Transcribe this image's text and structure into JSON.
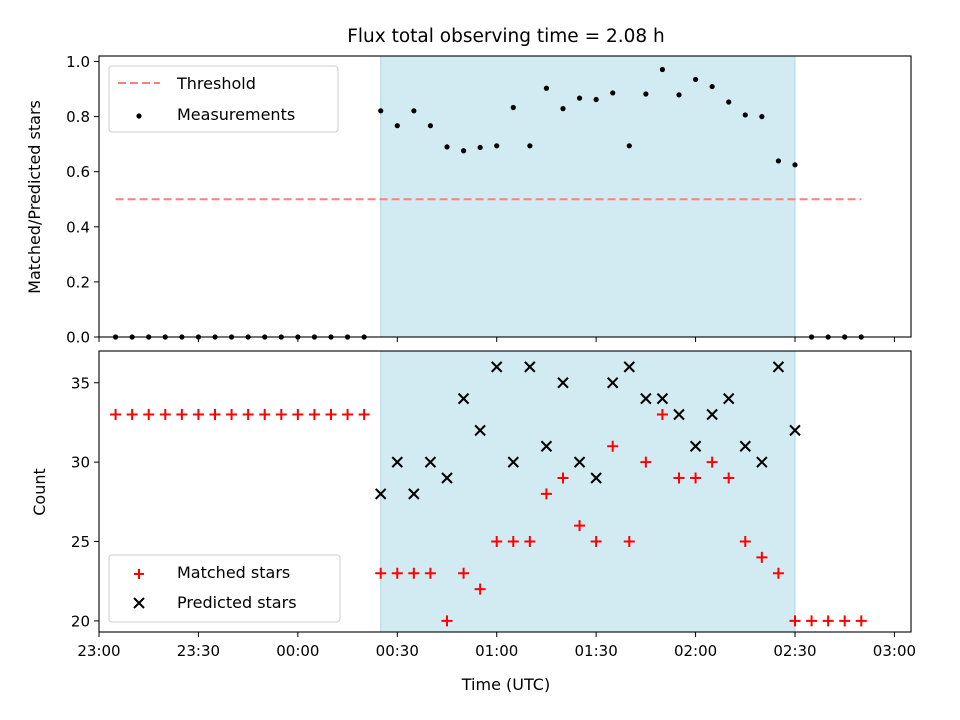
{
  "chart_data": [
    {
      "type": "scatter",
      "title": "Flux total observing time = 2.08 h",
      "ylabel": "Matched/Predicted stars",
      "ylim": [
        0.0,
        1.02
      ],
      "yticks": [
        "0.0",
        "0.2",
        "0.4",
        "0.6",
        "0.8",
        "1.0"
      ],
      "legend": {
        "placement": "top-left",
        "entries": [
          "Threshold",
          "Measurements"
        ]
      },
      "threshold": {
        "name": "Threshold",
        "value": 0.5,
        "x_start": "23:05",
        "x_end": "02:50",
        "color": "#ff7f7f",
        "style": "dashed"
      },
      "observing_window": {
        "start": "00:25",
        "end": "02:30",
        "color": "#add8e6"
      },
      "series": [
        {
          "name": "Measurements",
          "color": "#000000",
          "marker": "dot",
          "x": [
            "23:05",
            "23:10",
            "23:15",
            "23:20",
            "23:25",
            "23:30",
            "23:35",
            "23:40",
            "23:45",
            "23:50",
            "23:55",
            "00:00",
            "00:05",
            "00:10",
            "00:15",
            "00:20",
            "00:25",
            "00:30",
            "00:35",
            "00:40",
            "00:45",
            "00:50",
            "00:55",
            "01:00",
            "01:05",
            "01:10",
            "01:15",
            "01:20",
            "01:25",
            "01:30",
            "01:35",
            "01:40",
            "01:45",
            "01:50",
            "01:55",
            "02:00",
            "02:05",
            "02:10",
            "02:15",
            "02:20",
            "02:25",
            "02:30",
            "02:35",
            "02:40",
            "02:45",
            "02:50"
          ],
          "y": [
            0,
            0,
            0,
            0,
            0,
            0,
            0,
            0,
            0,
            0,
            0,
            0,
            0,
            0,
            0,
            0,
            0.821,
            0.767,
            0.821,
            0.767,
            0.69,
            0.676,
            0.688,
            0.694,
            0.833,
            0.694,
            0.903,
            0.829,
            0.867,
            0.862,
            0.886,
            0.694,
            0.882,
            0.971,
            0.879,
            0.935,
            0.909,
            0.853,
            0.806,
            0.8,
            0.639,
            0.625,
            0,
            0,
            0,
            0
          ]
        }
      ]
    },
    {
      "type": "scatter",
      "xlabel": "Time (UTC)",
      "ylabel": "Count",
      "ylim": [
        19.3,
        37
      ],
      "yticks": [
        "20",
        "25",
        "30",
        "35"
      ],
      "xticks": [
        "23:00",
        "23:30",
        "00:00",
        "00:30",
        "01:00",
        "01:30",
        "02:00",
        "02:30",
        "03:00"
      ],
      "legend": {
        "placement": "bottom-left",
        "entries": [
          "Matched stars",
          "Predicted stars"
        ]
      },
      "observing_window": {
        "start": "00:25",
        "end": "02:30",
        "color": "#add8e6"
      },
      "series": [
        {
          "name": "Matched stars",
          "color": "#ff0000",
          "marker": "plus",
          "x": [
            "23:05",
            "23:10",
            "23:15",
            "23:20",
            "23:25",
            "23:30",
            "23:35",
            "23:40",
            "23:45",
            "23:50",
            "23:55",
            "00:00",
            "00:05",
            "00:10",
            "00:15",
            "00:20",
            "00:25",
            "00:30",
            "00:35",
            "00:40",
            "00:45",
            "00:50",
            "00:55",
            "01:00",
            "01:05",
            "01:10",
            "01:15",
            "01:20",
            "01:25",
            "01:30",
            "01:35",
            "01:40",
            "01:45",
            "01:50",
            "01:55",
            "02:00",
            "02:05",
            "02:10",
            "02:15",
            "02:20",
            "02:25",
            "02:30",
            "02:35",
            "02:40",
            "02:45",
            "02:50"
          ],
          "y": [
            33,
            33,
            33,
            33,
            33,
            33,
            33,
            33,
            33,
            33,
            33,
            33,
            33,
            33,
            33,
            33,
            23,
            23,
            23,
            23,
            20,
            23,
            22,
            25,
            25,
            25,
            28,
            29,
            26,
            25,
            31,
            25,
            30,
            33,
            29,
            29,
            30,
            29,
            25,
            24,
            23,
            20,
            20,
            20,
            20,
            20
          ]
        },
        {
          "name": "Predicted stars",
          "color": "#000000",
          "marker": "x",
          "x": [
            "00:25",
            "00:30",
            "00:35",
            "00:40",
            "00:45",
            "00:50",
            "00:55",
            "01:00",
            "01:05",
            "01:10",
            "01:15",
            "01:20",
            "01:25",
            "01:30",
            "01:35",
            "01:40",
            "01:45",
            "01:50",
            "01:55",
            "02:00",
            "02:05",
            "02:10",
            "02:15",
            "02:20",
            "02:25",
            "02:30"
          ],
          "y": [
            28,
            30,
            28,
            30,
            29,
            34,
            32,
            36,
            30,
            36,
            31,
            35,
            30,
            29,
            35,
            36,
            34,
            34,
            33,
            31,
            33,
            34,
            31,
            30,
            36,
            32
          ]
        }
      ]
    }
  ]
}
